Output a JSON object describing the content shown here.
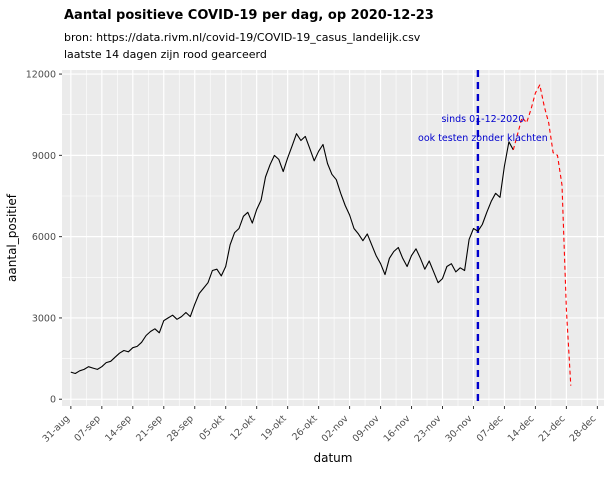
{
  "page": {
    "background": "#ffffff"
  },
  "chart_data": {
    "type": "line",
    "title": "Aantal positieve COVID-19 per dag, op 2020-12-23",
    "subtitle_lines": [
      "bron: https://data.rivm.nl/covid-19/COVID-19_casus_landelijk.csv",
      "laatste 14 dagen zijn rood gearceerd"
    ],
    "xlabel": "datum",
    "ylabel": "aantal_positief",
    "panel_bg": "#ebebeb",
    "grid_color": "#ffffff",
    "tick_color": "#333333",
    "tick_label_color": "#4d4d4d",
    "x_tick_labels": [
      "31-aug",
      "07-sep",
      "14-sep",
      "21-sep",
      "28-sep",
      "05-okt",
      "12-okt",
      "19-okt",
      "26-okt",
      "02-nov",
      "09-nov",
      "16-nov",
      "23-nov",
      "30-nov",
      "07-dec",
      "14-dec",
      "21-dec",
      "28-dec"
    ],
    "x_tick_days": [
      0,
      7,
      14,
      21,
      28,
      35,
      42,
      49,
      56,
      63,
      70,
      77,
      84,
      91,
      98,
      105,
      112,
      119
    ],
    "y_ticks": [
      0,
      3000,
      6000,
      9000,
      12000
    ],
    "y_tick_labels": [
      "0",
      "3000",
      "6000",
      "9000",
      "12000"
    ],
    "y_minor": [
      1500,
      4500,
      7500,
      10500
    ],
    "x_domain": [
      -2,
      120.5
    ],
    "y_domain": [
      -250,
      12150
    ],
    "start_date_label": "31-aug",
    "series": [
      {
        "name": "aantal positief per dag",
        "color": "#000000",
        "style": "solid",
        "day_start": 0,
        "values": [
          1000,
          950,
          1050,
          1100,
          1200,
          1150,
          1100,
          1200,
          1350,
          1400,
          1550,
          1700,
          1800,
          1750,
          1900,
          1950,
          2100,
          2350,
          2500,
          2600,
          2450,
          2900,
          3000,
          3100,
          2950,
          3050,
          3200,
          3050,
          3500,
          3900,
          4100,
          4300,
          4750,
          4800,
          4550,
          4900,
          5700,
          6150,
          6300,
          6750,
          6900,
          6500,
          7000,
          7350,
          8200,
          8650,
          9000,
          8850,
          8400,
          8900,
          9350,
          9800,
          9550,
          9700,
          9250,
          8800,
          9150,
          9400,
          8700,
          8300,
          8100,
          7600,
          7150,
          6800,
          6300,
          6100,
          5850,
          6100,
          5700,
          5300,
          5000,
          4600,
          5200,
          5450,
          5600,
          5200,
          4900,
          5300,
          5550,
          5200,
          4800,
          5100,
          4700,
          4300,
          4450,
          4900,
          5000,
          4700,
          4850,
          4750,
          5900,
          6300,
          6200,
          6450,
          6900,
          7300,
          7600,
          7450,
          8600,
          9500,
          9200
        ]
      },
      {
        "name": "laatste 14 dagen (rood gearceerd)",
        "color": "#ff0000",
        "style": "dashed",
        "day_start": 100,
        "values": [
          9200,
          9800,
          10400,
          10200,
          10700,
          11300,
          11600,
          10800,
          10200,
          9100,
          9000,
          7900,
          3300,
          500
        ]
      }
    ],
    "vline": {
      "day": 92,
      "color": "#0000cd",
      "style": "dashed",
      "annotation_lines": [
        "sinds 01-12-2020",
        "ook testen zonder klachten"
      ]
    }
  }
}
